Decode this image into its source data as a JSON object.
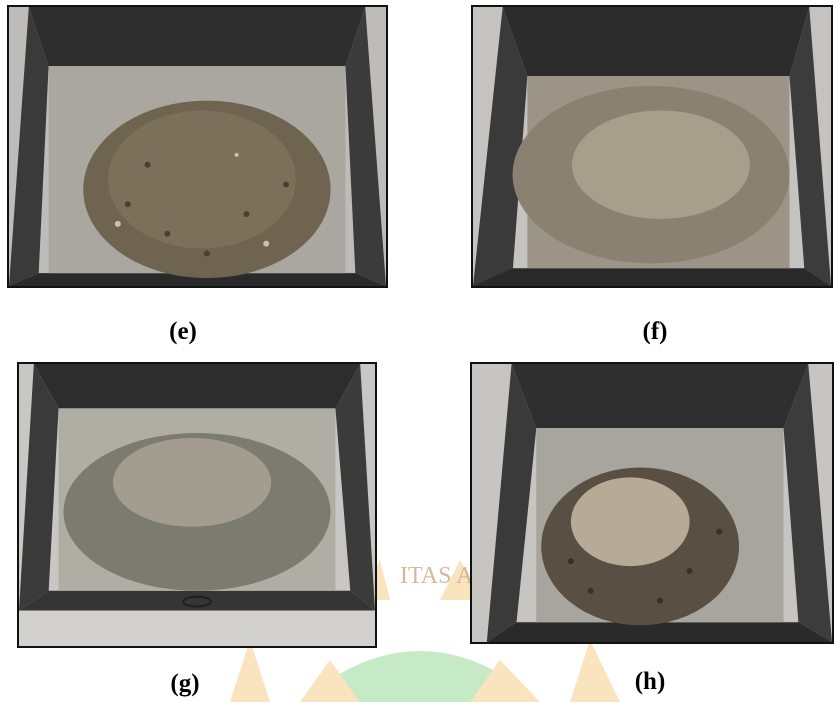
{
  "panels": [
    {
      "label": "(e)",
      "description": "sand"
    },
    {
      "label": "(f)",
      "description": "sand"
    },
    {
      "label": "(g)",
      "description": "sand"
    },
    {
      "label": "(h)",
      "description": "sand"
    }
  ],
  "watermark": {
    "text": "ITAS A",
    "color": "#f2b24a"
  },
  "colors": {
    "tray_dark": "#3a3a3a",
    "tray_floor": "#b9b6ae",
    "floor_tile": "#cfcfcf"
  }
}
